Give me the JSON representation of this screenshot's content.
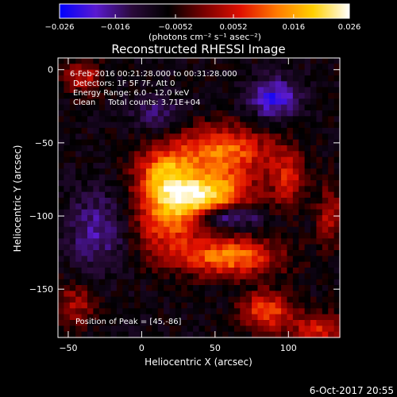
{
  "chart_data": {
    "type": "heatmap",
    "title": "Reconstructed RHESSI Image",
    "xlabel": "Heliocentric X (arcsec)",
    "ylabel": "Heliocentric Y (arcsec)",
    "xlim": [
      -57,
      135
    ],
    "ylim": [
      -183,
      8
    ],
    "x_ticks": [
      -50,
      0,
      50,
      100
    ],
    "y_ticks": [
      0,
      -50,
      -100,
      -150
    ],
    "colorbar": {
      "min": -0.026,
      "max": 0.026,
      "tick_values": [
        -0.026,
        -0.016,
        -0.0052,
        0.0052,
        0.016,
        0.026
      ],
      "tick_labels": [
        "−0.026",
        "−0.016",
        "−0.0052",
        "0.0052",
        "0.016",
        "0.026"
      ],
      "units_label": "(photons cm⁻² s⁻¹ asec⁻²)",
      "stops": [
        "#0000ff",
        "#5a1ad0",
        "#2a0a3a",
        "#000000",
        "#7a0000",
        "#e01000",
        "#ff7a00",
        "#ffd000",
        "#ffffff"
      ]
    },
    "annotations": [
      "6-Feb-2016 00:21:28.000 to 00:31:28.000",
      "Detectors: 1F 5F 7F, Att 0",
      "Energy Range: 6.0 - 12.0 keV",
      "Clean     Total counts: 3.71E+04"
    ],
    "peak_label": "Position of Peak = [45,-86]",
    "peak": [
      45,
      -86
    ],
    "features": [
      {
        "x": 55,
        "y": -57,
        "sx": 24,
        "sy": 13,
        "amp": 0.02
      },
      {
        "x": 15,
        "y": -70,
        "sx": 13,
        "sy": 12,
        "amp": 0.017
      },
      {
        "x": 18,
        "y": -100,
        "sx": 16,
        "sy": 18,
        "amp": 0.019
      },
      {
        "x": 45,
        "y": -86,
        "sx": 20,
        "sy": 10,
        "amp": 0.026
      },
      {
        "x": 60,
        "y": -128,
        "sx": 24,
        "sy": 9,
        "amp": 0.021
      },
      {
        "x": 100,
        "y": -75,
        "sx": 8,
        "sy": 14,
        "amp": 0.012
      },
      {
        "x": 85,
        "y": -165,
        "sx": 12,
        "sy": 9,
        "amp": 0.018
      },
      {
        "x": 120,
        "y": -178,
        "sx": 12,
        "sy": 8,
        "amp": 0.014
      },
      {
        "x": -40,
        "y": -5,
        "sx": 10,
        "sy": 8,
        "amp": 0.012
      },
      {
        "x": -45,
        "y": -160,
        "sx": 10,
        "sy": 10,
        "amp": 0.01
      },
      {
        "x": 128,
        "y": -100,
        "sx": 6,
        "sy": 15,
        "amp": 0.011
      },
      {
        "x": 60,
        "y": -100,
        "sx": 14,
        "sy": 5,
        "amp": -0.016
      },
      {
        "x": 90,
        "y": -20,
        "sx": 12,
        "sy": 10,
        "amp": -0.014
      },
      {
        "x": -30,
        "y": -110,
        "sx": 14,
        "sy": 18,
        "amp": -0.01
      },
      {
        "x": 10,
        "y": -30,
        "sx": 12,
        "sy": 8,
        "amp": -0.008
      }
    ]
  },
  "timestamp": "6-Oct-2017 20:55"
}
